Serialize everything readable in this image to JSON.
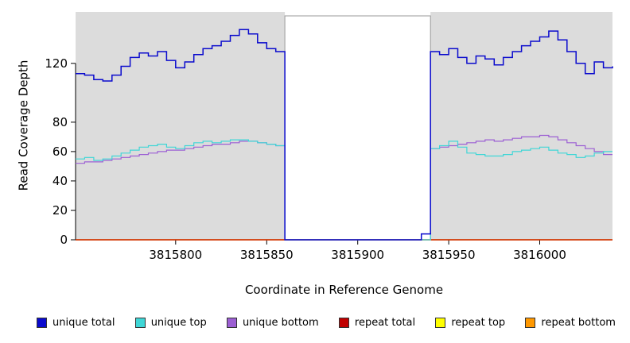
{
  "chart_data": {
    "type": "line",
    "line_style": "step",
    "title": "",
    "xlabel": "Coordinate in Reference Genome",
    "ylabel": "Read Coverage Depth",
    "xlim": [
      3815745,
      3816040
    ],
    "ylim": [
      0,
      155
    ],
    "xticks": [
      3815800,
      3815850,
      3815900,
      3815950,
      3816000
    ],
    "yticks": [
      0,
      20,
      40,
      60,
      80,
      120
    ],
    "grid": false,
    "legend_position": "bottom",
    "background_color": "#DCDCDC",
    "shaded_regions": [
      [
        3815745,
        3815860
      ],
      [
        3815940,
        3816040
      ]
    ],
    "masked_regions": [
      [
        3815860,
        3815940
      ]
    ],
    "x": [
      3815745,
      3815750,
      3815755,
      3815760,
      3815765,
      3815770,
      3815775,
      3815780,
      3815785,
      3815790,
      3815795,
      3815800,
      3815805,
      3815810,
      3815815,
      3815820,
      3815825,
      3815830,
      3815835,
      3815840,
      3815845,
      3815850,
      3815855,
      3815860,
      3815865,
      3815870,
      3815875,
      3815880,
      3815885,
      3815890,
      3815895,
      3815900,
      3815905,
      3815910,
      3815915,
      3815920,
      3815925,
      3815930,
      3815935,
      3815940,
      3815945,
      3815950,
      3815955,
      3815960,
      3815965,
      3815970,
      3815975,
      3815980,
      3815985,
      3815990,
      3815995,
      3816000,
      3816005,
      3816010,
      3816015,
      3816020,
      3816025,
      3816030,
      3816035,
      3816040
    ],
    "series": [
      {
        "name": "unique total",
        "color": "#0A0ACD",
        "width": 1.5,
        "values": [
          113,
          112,
          109,
          108,
          112,
          118,
          124,
          127,
          125,
          128,
          122,
          117,
          121,
          126,
          130,
          132,
          135,
          139,
          143,
          140,
          134,
          130,
          128,
          0,
          0,
          0,
          0,
          0,
          0,
          0,
          0,
          0,
          0,
          0,
          0,
          0,
          0,
          0,
          4,
          128,
          126,
          130,
          124,
          120,
          125,
          123,
          119,
          124,
          128,
          132,
          135,
          138,
          142,
          136,
          128,
          120,
          113,
          121,
          117,
          118
        ]
      },
      {
        "name": "unique top",
        "color": "#3FD6D6",
        "width": 1.2,
        "values": [
          55,
          56,
          54,
          55,
          57,
          59,
          61,
          63,
          64,
          65,
          63,
          62,
          64,
          66,
          67,
          66,
          67,
          68,
          68,
          67,
          66,
          65,
          64,
          0,
          0,
          0,
          0,
          0,
          0,
          0,
          0,
          0,
          0,
          0,
          0,
          0,
          0,
          0,
          0,
          62,
          64,
          67,
          63,
          59,
          58,
          57,
          57,
          58,
          60,
          61,
          62,
          63,
          61,
          59,
          58,
          56,
          57,
          59,
          60,
          60
        ]
      },
      {
        "name": "unique bottom",
        "color": "#9C5FD3",
        "width": 1.2,
        "values": [
          52,
          53,
          53,
          54,
          55,
          56,
          57,
          58,
          59,
          60,
          61,
          61,
          62,
          63,
          64,
          65,
          65,
          66,
          67,
          67,
          66,
          65,
          64,
          0,
          0,
          0,
          0,
          0,
          0,
          0,
          0,
          0,
          0,
          0,
          0,
          0,
          0,
          0,
          0,
          62,
          63,
          64,
          65,
          66,
          67,
          68,
          67,
          68,
          69,
          70,
          70,
          71,
          70,
          68,
          66,
          64,
          62,
          60,
          58,
          58
        ]
      },
      {
        "name": "repeat total",
        "color": "#C00000",
        "width": 1.2,
        "constant": 0
      },
      {
        "name": "repeat top",
        "color": "#FFFF00",
        "width": 1.2,
        "constant": 0
      },
      {
        "name": "repeat bottom",
        "color": "#FF9800",
        "width": 1.5,
        "constant": 0
      }
    ]
  }
}
